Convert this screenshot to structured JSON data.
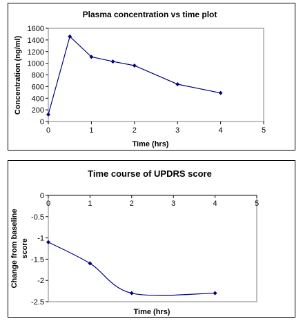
{
  "chart_data": [
    {
      "type": "line",
      "title": "Plasma concentration vs time plot",
      "xlabel": "Time (hrs)",
      "ylabel": "Concentration (ng/ml)",
      "xlim": [
        0,
        5
      ],
      "ylim": [
        0,
        1600
      ],
      "x_ticks": [
        "0",
        "1",
        "2",
        "3",
        "4",
        "5"
      ],
      "y_ticks": [
        "0",
        "200",
        "400",
        "600",
        "800",
        "1000",
        "1200",
        "1400",
        "1600"
      ],
      "plot_background": "#ffffff",
      "line_color": "#000080",
      "series": [
        {
          "x": [
            0,
            0.5,
            1,
            1.5,
            2,
            3,
            4
          ],
          "y": [
            120,
            1460,
            1110,
            1030,
            960,
            640,
            490
          ]
        }
      ]
    },
    {
      "type": "line",
      "title": "Time course of UPDRS score",
      "xlabel": "Time (hrs)",
      "ylabel": "Change from baseline score",
      "xlim": [
        0,
        5
      ],
      "ylim": [
        -2.5,
        0
      ],
      "x_ticks": [
        "0",
        "1",
        "2",
        "3",
        "4",
        "5"
      ],
      "y_ticks": [
        "0",
        "-0.5",
        "-1",
        "-1.5",
        "-2",
        "-2.5"
      ],
      "plot_background": "#ffffff",
      "line_color": "#000080",
      "smooth": true,
      "series": [
        {
          "x": [
            0,
            1,
            2,
            4
          ],
          "y": [
            -1.1,
            -1.6,
            -2.3,
            -2.3
          ]
        }
      ]
    }
  ]
}
